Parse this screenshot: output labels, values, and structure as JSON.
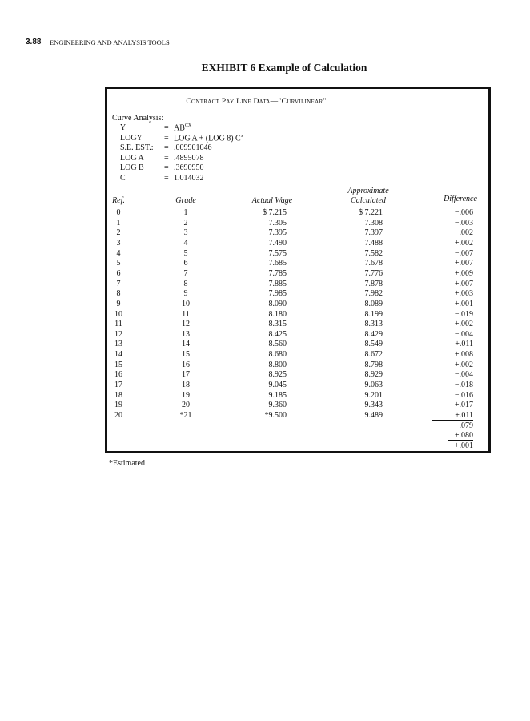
{
  "header": {
    "page_number": "3.88",
    "running_head": "ENGINEERING AND ANALYSIS TOOLS"
  },
  "exhibit_title": "EXHIBIT 6 Example of Calculation",
  "table_title": "Contract Pay Line Data—\"Curvilinear\"",
  "curve_analysis": {
    "label": "Curve Analysis:",
    "rows": [
      {
        "name": "Y",
        "eq": "=",
        "value": "AB",
        "sup": "CX"
      },
      {
        "name": "LOGY",
        "eq": "=",
        "value": "LOG A + (LOG 8) C",
        "sup": "x"
      },
      {
        "name": "S.E. EST.:",
        "eq": "=",
        "value": ".009901046",
        "sup": ""
      },
      {
        "name": "LOG A",
        "eq": "=",
        "value": ".4895078",
        "sup": ""
      },
      {
        "name": "LOG B",
        "eq": "=",
        "value": ".3690950",
        "sup": ""
      },
      {
        "name": "C",
        "eq": "=",
        "value": "1.014032",
        "sup": ""
      }
    ]
  },
  "columns": {
    "ref": "Ref.",
    "grade": "Grade",
    "actual": "Actual Wage",
    "approx_top": "Approximate",
    "approx": "Calculated",
    "diff": "Difference"
  },
  "rows": [
    [
      "0",
      "1",
      "$ 7.215",
      "$ 7.221",
      "−.006"
    ],
    [
      "1",
      "2",
      "7.305",
      "7.308",
      "−.003"
    ],
    [
      "2",
      "3",
      "7.395",
      "7.397",
      "−.002"
    ],
    [
      "3",
      "4",
      "7.490",
      "7.488",
      "+.002"
    ],
    [
      "4",
      "5",
      "7.575",
      "7.582",
      "−.007"
    ],
    [
      "5",
      "6",
      "7.685",
      "7.678",
      "+.007"
    ],
    [
      "6",
      "7",
      "7.785",
      "7.776",
      "+.009"
    ],
    [
      "7",
      "8",
      "7.885",
      "7.878",
      "+.007"
    ],
    [
      "8",
      "9",
      "7.985",
      "7.982",
      "+.003"
    ],
    [
      "9",
      "10",
      "8.090",
      "8.089",
      "+.001"
    ],
    [
      "10",
      "11",
      "8.180",
      "8.199",
      "−.019"
    ],
    [
      "11",
      "12",
      "8.315",
      "8.313",
      "+.002"
    ],
    [
      "12",
      "13",
      "8.425",
      "8.429",
      "−.004"
    ],
    [
      "13",
      "14",
      "8.560",
      "8.549",
      "+.011"
    ],
    [
      "14",
      "15",
      "8.680",
      "8.672",
      "+.008"
    ],
    [
      "15",
      "16",
      "8.800",
      "8.798",
      "+.002"
    ],
    [
      "16",
      "17",
      "8.925",
      "8.929",
      "−.004"
    ],
    [
      "17",
      "18",
      "9.045",
      "9.063",
      "−.018"
    ],
    [
      "18",
      "19",
      "9.185",
      "9.201",
      "−.016"
    ],
    [
      "19",
      "20",
      "9.360",
      "9.343",
      "+.017"
    ],
    [
      "20",
      "*21",
      "*9.500",
      "9.489",
      "+.011"
    ]
  ],
  "totals": [
    "−.079",
    "+.080",
    "+.001"
  ],
  "footnote": "*Estimated"
}
